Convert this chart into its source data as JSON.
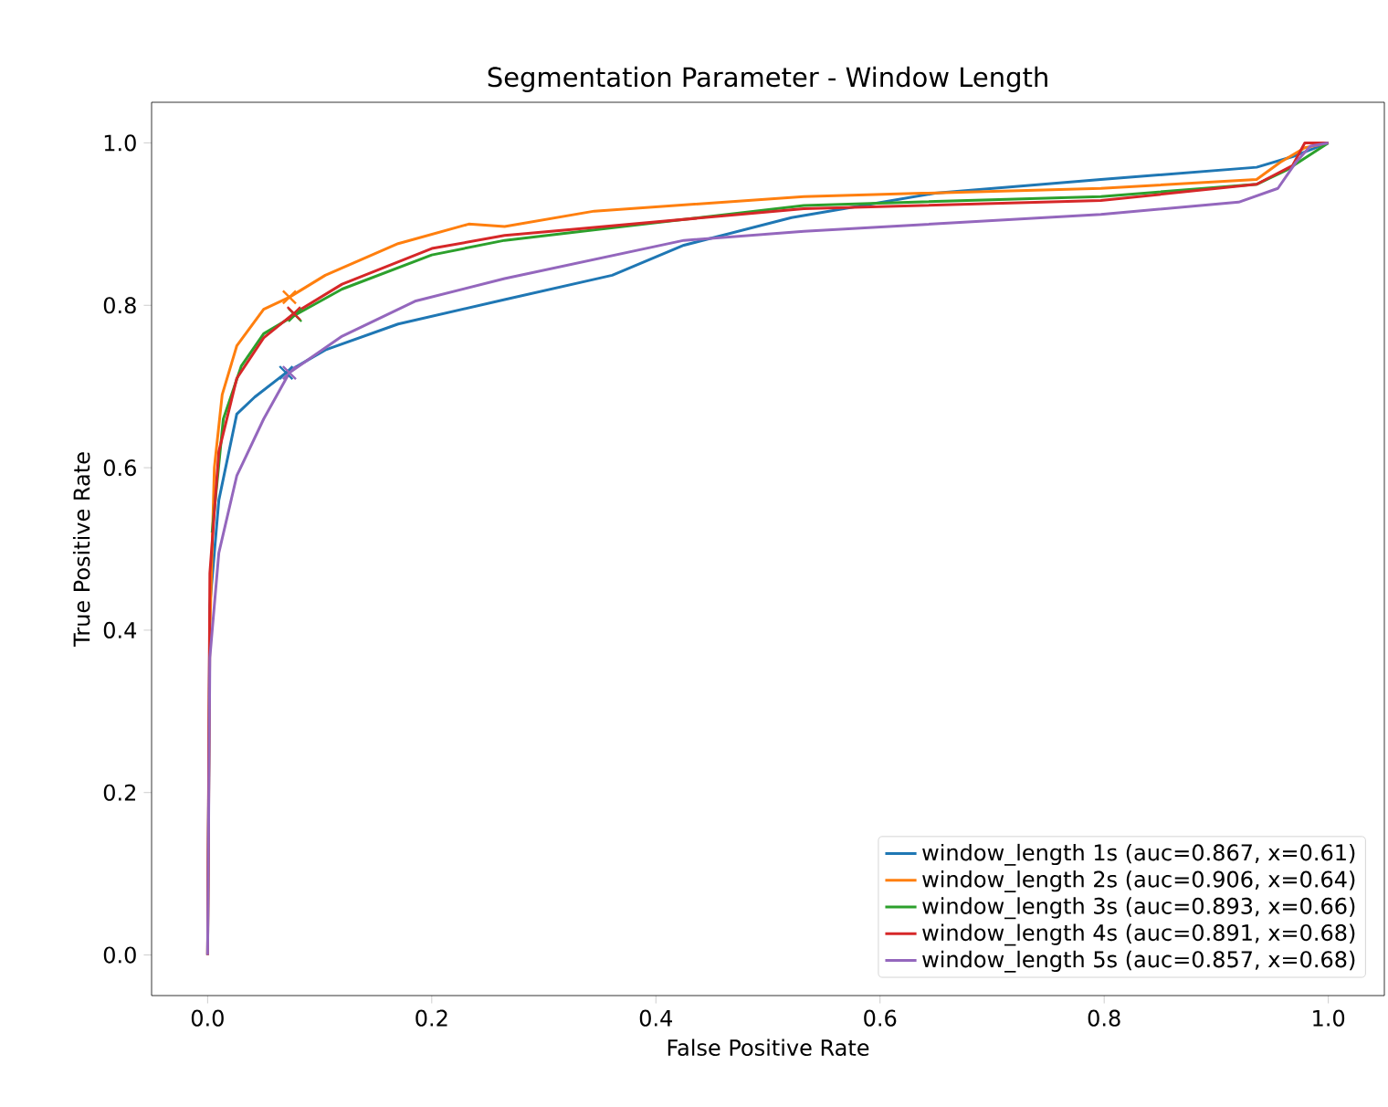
{
  "chart_data": {
    "type": "line",
    "title": "Segmentation Parameter - Window Length",
    "xlabel": "False Positive Rate",
    "ylabel": "True Positive Rate",
    "xlim": [
      -0.05,
      1.05
    ],
    "ylim": [
      -0.05,
      1.05
    ],
    "xticks": [
      {
        "value": 0,
        "label": "0.0"
      },
      {
        "value": 0.2,
        "label": "0.2"
      },
      {
        "value": 0.4,
        "label": "0.4"
      },
      {
        "value": 0.6,
        "label": "0.6"
      },
      {
        "value": 0.8,
        "label": "0.8"
      },
      {
        "value": 1,
        "label": "1.0"
      }
    ],
    "yticks": [
      {
        "value": 0,
        "label": "0.0"
      },
      {
        "value": 0.2,
        "label": "0.2"
      },
      {
        "value": 0.4,
        "label": "0.4"
      },
      {
        "value": 0.6,
        "label": "0.6"
      },
      {
        "value": 0.8,
        "label": "0.8"
      },
      {
        "value": 1,
        "label": "1.0"
      }
    ],
    "legend": "bottom right",
    "grid": false,
    "line_style": "solid",
    "series": [
      {
        "name": "window_length 1s (auc=0.867, x=0.61)",
        "color": "#1f77b4",
        "x": [
          0,
          0.002,
          0.01,
          0.026,
          0.042,
          0.07,
          0.105,
          0.17,
          0.265,
          0.361,
          0.425,
          0.521,
          0.649,
          0.797,
          0.936,
          0.968,
          1
        ],
        "values": [
          0,
          0.43,
          0.56,
          0.666,
          0.687,
          0.717,
          0.745,
          0.777,
          0.807,
          0.837,
          0.874,
          0.908,
          0.938,
          0.955,
          0.97,
          0.983,
          1
        ]
      },
      {
        "name": "window_length 2s (auc=0.906, x=0.64)",
        "color": "#ff7f0e",
        "x": [
          0,
          0.002,
          0.006,
          0.013,
          0.026,
          0.05,
          0.073,
          0.105,
          0.17,
          0.233,
          0.265,
          0.345,
          0.532,
          0.797,
          0.936,
          0.957,
          0.979,
          1
        ],
        "values": [
          0,
          0.4,
          0.6,
          0.69,
          0.75,
          0.795,
          0.81,
          0.837,
          0.876,
          0.9,
          0.897,
          0.916,
          0.934,
          0.944,
          0.955,
          0.976,
          0.994,
          1
        ]
      },
      {
        "name": "window_length 3s (auc=0.893, x=0.66)",
        "color": "#2ca02c",
        "x": [
          0.004,
          0.014,
          0.03,
          0.05,
          0.078,
          0.12,
          0.2,
          0.265,
          0.532,
          0.797,
          0.936,
          0.962,
          1
        ],
        "values": [
          0.52,
          0.66,
          0.725,
          0.765,
          0.788,
          0.82,
          0.862,
          0.88,
          0.923,
          0.934,
          0.949,
          0.966,
          1
        ]
      },
      {
        "name": "window_length 4s (auc=0.891, x=0.68)",
        "color": "#d62728",
        "x": [
          0,
          0.002,
          0.01,
          0.026,
          0.05,
          0.077,
          0.12,
          0.2,
          0.265,
          0.532,
          0.797,
          0.936,
          0.968,
          0.979,
          1
        ],
        "values": [
          0,
          0.47,
          0.62,
          0.71,
          0.76,
          0.79,
          0.826,
          0.87,
          0.886,
          0.919,
          0.929,
          0.949,
          0.972,
          1,
          1
        ]
      },
      {
        "name": "window_length 5s (auc=0.857, x=0.68)",
        "color": "#9467bd",
        "x": [
          0,
          0.002,
          0.01,
          0.026,
          0.05,
          0.073,
          0.12,
          0.185,
          0.265,
          0.425,
          0.532,
          0.797,
          0.92,
          0.955,
          0.971,
          0.984,
          1
        ],
        "values": [
          0,
          0.366,
          0.495,
          0.59,
          0.66,
          0.717,
          0.762,
          0.805,
          0.833,
          0.88,
          0.891,
          0.912,
          0.927,
          0.944,
          0.976,
          0.996,
          1
        ]
      },
      {
        "type": "scatter",
        "marker": "cross",
        "x": [
          0.07,
          0.073,
          0.078,
          0.077,
          0.073
        ],
        "values": [
          0.717,
          0.81,
          0.788,
          0.79,
          0.717
        ],
        "colors": [
          "#1f77b4",
          "#ff7f0e",
          "#2ca02c",
          "#d62728",
          "#9467bd"
        ]
      }
    ]
  }
}
